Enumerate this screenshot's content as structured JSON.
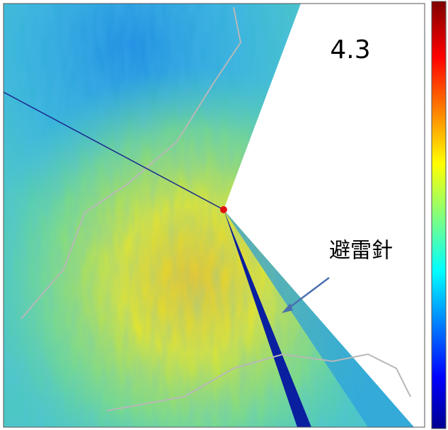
{
  "label": "4.3",
  "annotation": "避雷針"
}
